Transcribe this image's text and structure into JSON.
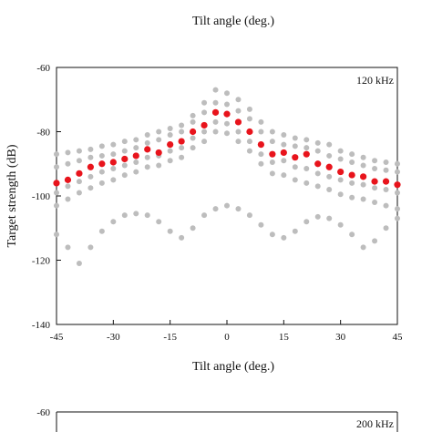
{
  "figure": {
    "top_xlabel": "Tilt angle (deg.)"
  },
  "chart_data": [
    {
      "type": "scatter",
      "annotation": "120 kHz",
      "xlabel": "Tilt angle (deg.)",
      "ylabel": "Target strength (dB)",
      "xlim": [
        -45,
        45
      ],
      "ylim": [
        -140,
        -60
      ],
      "xticks": [
        -45,
        -30,
        -15,
        0,
        15,
        30,
        45
      ],
      "yticks": [
        -60,
        -80,
        -100,
        -120,
        -140
      ],
      "grid": false,
      "colors": {
        "highlight": "#e8141c",
        "other": "#bdbdbd"
      },
      "series": [
        {
          "role": "highlight",
          "x": [
            -45,
            -42,
            -39,
            -36,
            -33,
            -30,
            -27,
            -24,
            -21,
            -18,
            -15,
            -12,
            -9,
            -6,
            -3,
            0,
            3,
            6,
            9,
            12,
            15,
            18,
            21,
            24,
            27,
            30,
            33,
            36,
            39,
            42,
            45
          ],
          "y": [
            -96,
            -95,
            -93,
            -91,
            -90,
            -89.5,
            -88.5,
            -87.5,
            -85.5,
            -86.5,
            -84,
            -83,
            -80,
            -78,
            -74,
            -74.5,
            -77,
            -80,
            -84,
            -87,
            -86.5,
            -88,
            -87,
            -90,
            -91,
            -92.5,
            -93.5,
            -94,
            -95.5,
            -95.5,
            -96.5
          ]
        },
        {
          "role": "other",
          "x": [
            -45,
            -42,
            -39,
            -36,
            -33,
            -30,
            -27,
            -24,
            -21,
            -18,
            -15,
            -12,
            -9,
            -6,
            -3,
            0,
            3,
            6,
            9,
            12,
            15,
            18,
            21,
            24,
            27,
            30,
            33,
            36,
            39,
            42,
            45
          ],
          "y": [
            -87,
            -86.5,
            -86,
            -85.5,
            -84.5,
            -84,
            -83,
            -82.5,
            -81,
            -80,
            -79,
            -78,
            -75,
            -71,
            -67,
            -68,
            -70,
            -73,
            -77,
            -80,
            -81,
            -82,
            -82.5,
            -83.5,
            -84,
            -86,
            -87,
            -88,
            -89,
            -89.5,
            -90
          ]
        },
        {
          "role": "other",
          "x": [
            -45,
            -42,
            -39,
            -36,
            -33,
            -30,
            -27,
            -24,
            -21,
            -18,
            -15,
            -12,
            -9,
            -6,
            -3,
            0,
            3,
            6,
            9,
            12,
            15,
            18,
            21,
            24,
            27,
            30,
            33,
            36,
            39,
            42,
            45
          ],
          "y": [
            -91,
            -90,
            -89,
            -88,
            -87.5,
            -87,
            -86,
            -85,
            -83.5,
            -82.5,
            -81,
            -80,
            -77,
            -74,
            -71,
            -71.5,
            -73.5,
            -76,
            -80,
            -83,
            -84,
            -84.5,
            -85,
            -86,
            -87.5,
            -88.5,
            -89.5,
            -90.5,
            -91.5,
            -92,
            -92.5
          ]
        },
        {
          "role": "other",
          "x": [
            -45,
            -42,
            -39,
            -36,
            -33,
            -30,
            -27,
            -24,
            -21,
            -18,
            -15,
            -12,
            -9,
            -6,
            -3,
            0,
            3,
            6,
            9,
            12,
            15,
            18,
            21,
            24,
            27,
            30,
            33,
            36,
            39,
            42,
            45
          ],
          "y": [
            -99,
            -97,
            -95.5,
            -94,
            -92.5,
            -91.5,
            -90.5,
            -89.5,
            -88,
            -87.5,
            -86,
            -85,
            -82,
            -80,
            -77,
            -77.5,
            -80,
            -83,
            -87,
            -89.5,
            -89,
            -91,
            -91.5,
            -93,
            -94,
            -95,
            -96,
            -96.5,
            -97.5,
            -98,
            -99
          ]
        },
        {
          "role": "other",
          "x": [
            -45,
            -42,
            -39,
            -36,
            -33,
            -30,
            -27,
            -24,
            -21,
            -18,
            -15,
            -12,
            -9,
            -6,
            -3,
            0,
            3,
            6,
            9,
            12,
            15,
            18,
            21,
            24,
            27,
            30,
            33,
            36,
            39,
            42,
            45
          ],
          "y": [
            -103,
            -101,
            -99,
            -97.5,
            -96,
            -95,
            -93.5,
            -92.5,
            -91,
            -90.5,
            -89,
            -88,
            -85,
            -83,
            -80,
            -80.5,
            -83,
            -86,
            -90,
            -93,
            -93.5,
            -95,
            -96,
            -97,
            -98,
            -99.5,
            -100.5,
            -101,
            -102,
            -103,
            -104
          ]
        },
        {
          "role": "other",
          "x": [
            -45,
            -42,
            -39,
            -36,
            -33,
            -30,
            -27,
            -24,
            -21,
            -18,
            -15,
            -12,
            -9,
            -6,
            -3,
            0,
            3,
            6,
            9,
            12,
            15,
            18,
            21,
            24,
            27,
            30,
            33,
            36,
            39,
            42,
            45
          ],
          "y": [
            -112,
            -116,
            -121,
            -116,
            -111,
            -108,
            -106,
            -105.5,
            -106,
            -108,
            -111,
            -113,
            -110,
            -106,
            -104,
            -103,
            -104,
            -106,
            -109,
            -112,
            -113,
            -111,
            -108,
            -106.5,
            -107,
            -109,
            -112,
            -116,
            -114,
            -110,
            -107
          ]
        }
      ]
    },
    {
      "type": "scatter",
      "annotation": "200 kHz",
      "yticks": [
        -60
      ]
    }
  ]
}
